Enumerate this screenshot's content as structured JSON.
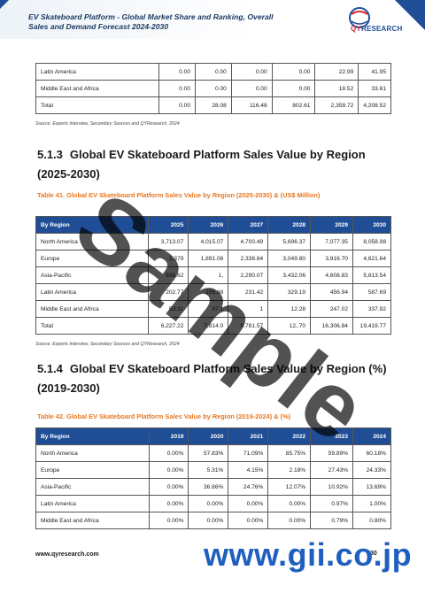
{
  "header": {
    "title": "EV Skateboard Platform - Global Market Share and Ranking, Overall Sales and Demand Forecast 2024-2030",
    "logo_brand": "RESEARCH",
    "logo_prefix": "QY"
  },
  "table_top": {
    "rows": [
      {
        "label": "Latin America",
        "values": [
          "0.00",
          "0.00",
          "0.00",
          "0.00",
          "22.99",
          "41.95"
        ]
      },
      {
        "label": "Middle East and Africa",
        "values": [
          "0.00",
          "0.00",
          "0.00",
          "0.00",
          "18.52",
          "33.61"
        ]
      },
      {
        "label": "Total",
        "values": [
          "0.00",
          "28.08",
          "116.48",
          "802.61",
          "2,358.72",
          "4,208.52"
        ]
      }
    ],
    "source": "Source: Experts Interview, Secondary Sources and QYResearch, 2024"
  },
  "section_513": {
    "number": "5.1.3",
    "title": "Global EV Skateboard Platform Sales Value by Region (2025-2030)"
  },
  "table_41": {
    "caption": "Table 41.   Global EV Skateboard Platform Sales Value by Region (2025-2030) & (US$ Million)",
    "headers": [
      "By Region",
      "2025",
      "2026",
      "2027",
      "2028",
      "2029",
      "2030"
    ],
    "rows": [
      {
        "label": "North America",
        "values": [
          "3,713.07",
          "4,015.07",
          "4,700.49",
          "5,696.37",
          "7,077.35",
          "8,058.98"
        ]
      },
      {
        "label": "Europe",
        "values": [
          "1,379",
          "1,891.06",
          "2,338.84",
          "3,049.80",
          "3,916.70",
          "4,621.64"
        ]
      },
      {
        "label": "Asia-Pacific",
        "values": [
          "836.62",
          "1,",
          "2,290.07",
          "3,432.06",
          "4,608.83",
          "5,813.54"
        ]
      },
      {
        "label": "Latin America",
        "values": [
          "202.77",
          "195.88",
          "231.42",
          "329.19",
          "456.94",
          "587.69"
        ]
      },
      {
        "label": "Middle East and Africa",
        "values": [
          "53.31",
          "97.1",
          "1",
          "12.28",
          "247.02",
          "337.92"
        ]
      },
      {
        "label": "Total",
        "values": [
          "6,227.22",
          "7,814.0",
          "9,781.57",
          "12,.70",
          "16,306.84",
          "19,419.77"
        ]
      }
    ],
    "source": "Source: Experts Interview, Secondary Sources and QYResearch, 2024"
  },
  "section_514": {
    "number": "5.1.4",
    "title": "Global EV Skateboard Platform Sales Value by Region (%) (2019-2030)"
  },
  "table_42": {
    "caption": "Table 42.   Global EV Skateboard Platform Sales Value by Region (2019-2024) & (%)",
    "headers": [
      "By Region",
      "2019",
      "2020",
      "2021",
      "2022",
      "2023",
      "2024"
    ],
    "rows": [
      {
        "label": "North America",
        "values": [
          "0.00%",
          "57.83%",
          "71.09%",
          "85.75%",
          "59.89%",
          "60.18%"
        ]
      },
      {
        "label": "Europe",
        "values": [
          "0.00%",
          "5.31%",
          "4.15%",
          "2.18%",
          "27.43%",
          "24.33%"
        ]
      },
      {
        "label": "Asia-Pacific",
        "values": [
          "0.00%",
          "36.86%",
          "24.76%",
          "12.07%",
          "10.92%",
          "13.69%"
        ]
      },
      {
        "label": "Latin America",
        "values": [
          "0.00%",
          "0.00%",
          "0.00%",
          "0.00%",
          "0.97%",
          "1.00%"
        ]
      },
      {
        "label": "Middle East and Africa",
        "values": [
          "0.00%",
          "0.00%",
          "0.00%",
          "0.00%",
          "0.79%",
          "0.80%"
        ]
      }
    ]
  },
  "footer": {
    "url": "www.qyresearch.com",
    "page_number": "30"
  },
  "watermarks": {
    "sample": "Sample",
    "gii": "www.gii.co.jp"
  },
  "colors": {
    "header_fill": "#1f4e96",
    "caption": "#e87722",
    "title": "#1b3a63"
  }
}
